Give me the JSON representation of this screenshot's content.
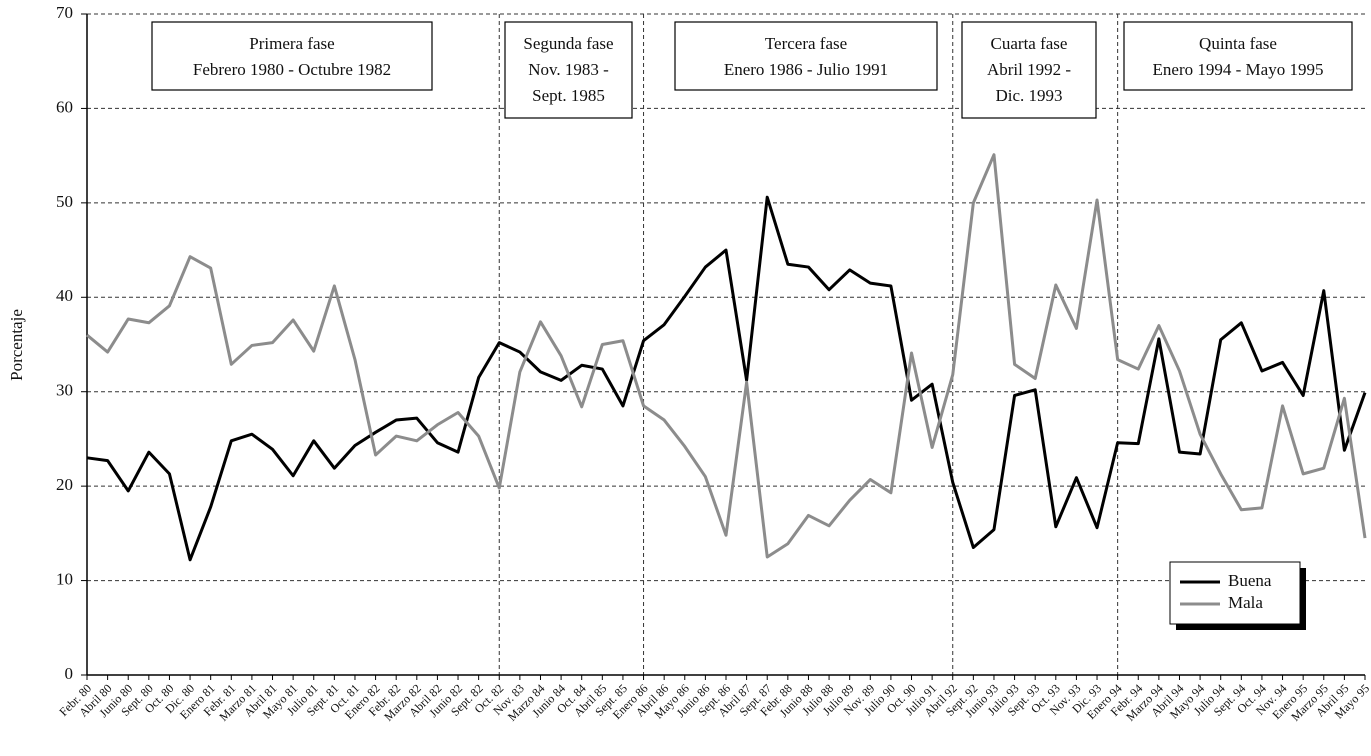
{
  "chart_data": {
    "type": "line",
    "y_label": "Porcentaje",
    "categories": [
      "Febr. 80",
      "Abril 80",
      "Junio 80",
      "Sept. 80",
      "Oct. 80",
      "Dic. 80",
      "Enero 81",
      "Febr. 81",
      "Marzo 81",
      "Abril 81",
      "Mayo 81",
      "Julio 81",
      "Sept. 81",
      "Oct. 81",
      "Enero 82",
      "Febr. 82",
      "Marzo 82",
      "Abril 82",
      "Junio 82",
      "Sept. 82",
      "Oct. 82",
      "Nov. 83",
      "Marzo 84",
      "Junio 84",
      "Oct. 84",
      "Abril 85",
      "Sept. 85",
      "Enero 86",
      "Abril 86",
      "Mayo 86",
      "Junio 86",
      "Sept. 86",
      "Abril 87",
      "Sept. 87",
      "Febr. 88",
      "Junio 88",
      "Julio 88",
      "Julio 89",
      "Nov. 89",
      "Julio 90",
      "Oct. 90",
      "Julio 91",
      "Abril 92",
      "Sept. 92",
      "Junio 93",
      "Julio 93",
      "Sept. 93",
      "Oct. 93",
      "Nov. 93",
      "Dic. 93",
      "Enero 94",
      "Febr. 94",
      "Marzo 94",
      "Abril 94",
      "Mayo 94",
      "Julio 94",
      "Sept. 94",
      "Oct. 94",
      "Nov. 94",
      "Enero 95",
      "Marzo 95",
      "Abril 95",
      "Mayo 95"
    ],
    "series": [
      {
        "name": "Buena",
        "color": "#000000",
        "values": [
          23.0,
          22.7,
          19.5,
          23.6,
          21.3,
          12.2,
          17.8,
          24.8,
          25.5,
          23.9,
          21.1,
          24.8,
          21.9,
          24.3,
          25.7,
          27.0,
          27.2,
          24.6,
          23.6,
          31.5,
          35.2,
          34.2,
          32.1,
          31.2,
          32.8,
          32.4,
          28.5,
          35.4,
          37.1,
          40.1,
          43.2,
          45.0,
          31.2,
          50.6,
          43.5,
          43.2,
          40.8,
          42.9,
          41.5,
          41.2,
          29.1,
          30.8,
          20.4,
          13.5,
          15.4,
          29.6,
          30.2,
          15.7,
          20.9,
          15.6,
          24.6,
          24.5,
          35.6,
          23.6,
          23.4,
          35.5,
          37.3,
          32.2,
          33.1,
          29.6,
          40.7,
          23.8,
          29.9
        ]
      },
      {
        "name": "Mala",
        "color": "#8c8c8c",
        "values": [
          36.0,
          34.2,
          37.7,
          37.3,
          39.1,
          44.3,
          43.1,
          32.9,
          34.9,
          35.2,
          37.6,
          34.3,
          41.2,
          33.4,
          23.3,
          25.3,
          24.8,
          26.5,
          27.8,
          25.3,
          19.8,
          32.1,
          37.4,
          33.8,
          28.4,
          35.0,
          35.4,
          28.5,
          27.0,
          24.2,
          21.0,
          14.8,
          31.0,
          12.5,
          13.9,
          16.9,
          15.8,
          18.5,
          20.7,
          19.3,
          34.1,
          24.1,
          31.8,
          50.0,
          55.1,
          32.9,
          31.4,
          41.3,
          36.7,
          50.3,
          33.4,
          32.4,
          37.0,
          32.2,
          25.5,
          21.3,
          17.5,
          17.7,
          28.5,
          21.3,
          21.9,
          29.3,
          14.5
        ]
      }
    ],
    "ylim": [
      0,
      70
    ],
    "yticks": [
      0,
      10,
      20,
      30,
      40,
      50,
      60,
      70
    ],
    "grid": true,
    "legend": "lower right",
    "annotations": [
      {
        "lines": [
          "Primera fase",
          "Febrero 1980 - Octubre 1982"
        ]
      },
      {
        "lines": [
          "Segunda fase",
          "Nov. 1983 -",
          "Sept. 1985"
        ]
      },
      {
        "lines": [
          "Tercera fase",
          "Enero 1986 - Julio 1991"
        ]
      },
      {
        "lines": [
          "Cuarta fase",
          "Abril 1992 -",
          "Dic. 1993"
        ]
      },
      {
        "lines": [
          "Quinta fase",
          "Enero 1994 - Mayo 1995"
        ]
      }
    ]
  }
}
